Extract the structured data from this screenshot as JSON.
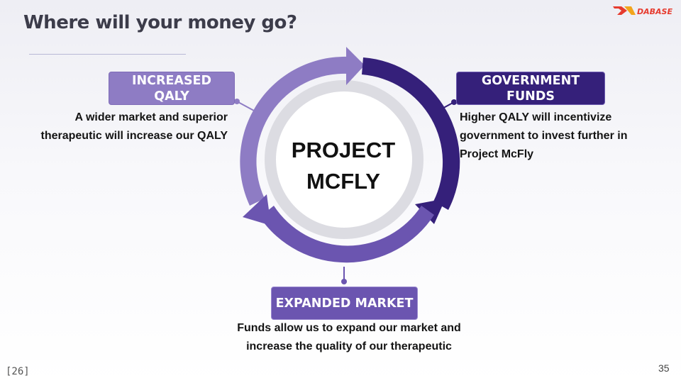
{
  "slide": {
    "title": "Where will your money go?",
    "logo": {
      "text": "DABASE",
      "colors": {
        "primary": "#e63b2e",
        "secondary": "#f2a51c"
      }
    },
    "center": {
      "line1": "PROJECT",
      "line2": "MCFLY"
    },
    "nodes": {
      "qaly": {
        "label": "INCREASED QALY",
        "description": "A wider market and superior therapeutic will increase our QALY",
        "color": "#8e7cc4"
      },
      "government": {
        "label": "GOVERNMENT FUNDS",
        "description": "Higher QALY will incentivize government to invest further in Project McFly",
        "color": "#35207a"
      },
      "market": {
        "label": "EXPANDED MARKET",
        "description": "Funds allow us to expand our market and increase the quality of our therapeutic",
        "color": "#6b55b0"
      }
    },
    "footer": {
      "reference": "[26]",
      "page_number": "35"
    }
  }
}
